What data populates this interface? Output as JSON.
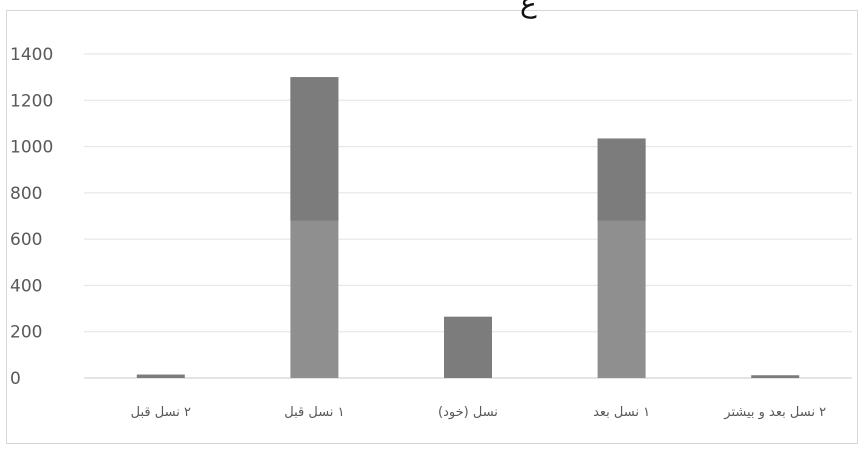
{
  "title_fragment": "ع",
  "chart_data": {
    "type": "bar",
    "title": "",
    "xlabel": "",
    "ylabel": "",
    "categories": [
      "۲ نسل قبل",
      "۱ نسل قبل",
      "نسل (خود)",
      "۱ نسل بعد",
      "۲ نسل بعد و بیشتر"
    ],
    "values": [
      15,
      1300,
      265,
      1035,
      12
    ],
    "ylim": [
      0,
      1400
    ],
    "yticks": [
      "0",
      "200",
      "400",
      "600",
      "800",
      "1000",
      "1200",
      "1400"
    ],
    "grid": true,
    "legend": "none",
    "colors": {
      "bar": "#8f8f8f",
      "bar_dark": "#7c7c7c",
      "grid": "#e2e2e2",
      "axis": "#c8c8c8",
      "tick_text": "#595959"
    }
  }
}
